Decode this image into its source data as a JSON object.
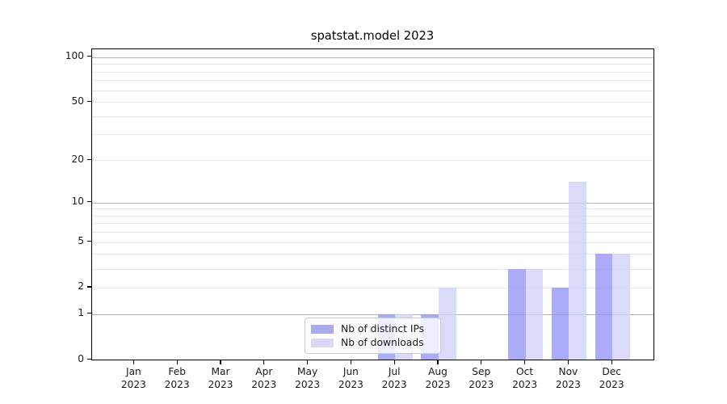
{
  "chart_data": {
    "type": "bar",
    "title": "spatstat.model 2023",
    "categories": [
      "Jan 2023",
      "Feb 2023",
      "Mar 2023",
      "Apr 2023",
      "May 2023",
      "Jun 2023",
      "Jul 2023",
      "Aug 2023",
      "Sep 2023",
      "Oct 2023",
      "Nov 2023",
      "Dec 2023"
    ],
    "months": [
      "Jan",
      "Feb",
      "Mar",
      "Apr",
      "May",
      "Jun",
      "Jul",
      "Aug",
      "Sep",
      "Oct",
      "Nov",
      "Dec"
    ],
    "year_label": "2023",
    "series": [
      {
        "name": "Nb of distinct IPs",
        "color": "rgba(150,150,247,0.8)",
        "legend_color": "#aaaaee",
        "values": [
          0,
          0,
          0,
          0,
          0,
          0,
          1,
          1,
          0,
          3,
          2,
          4
        ]
      },
      {
        "name": "Nb of downloads",
        "color": "rgba(209,209,247,0.8)",
        "legend_color": "#d9d9f7",
        "values": [
          0,
          0,
          0,
          0,
          0,
          0,
          1,
          2,
          0,
          3,
          14,
          4
        ]
      }
    ],
    "y_axis": {
      "scale": "log10(1+v), 0 at baseline",
      "tick_labels": [
        100,
        50,
        20,
        10,
        5,
        2,
        1,
        0
      ],
      "major_gridlines": [
        1,
        10,
        100
      ],
      "minor_gridlines": [
        2,
        3,
        4,
        5,
        6,
        7,
        8,
        9,
        20,
        30,
        40,
        50,
        60,
        70,
        80,
        90
      ],
      "ylim": [
        0,
        113
      ],
      "grid": "on"
    },
    "legend": {
      "position": "lower center",
      "entries": [
        "Nb of distinct IPs",
        "Nb of downloads"
      ]
    },
    "colors": {
      "grid_major": "#b0b0b0",
      "grid_minor": "#e8e8e8",
      "spine": "#000000",
      "tick_text": "#1a1a1a",
      "background": "#ffffff"
    }
  }
}
